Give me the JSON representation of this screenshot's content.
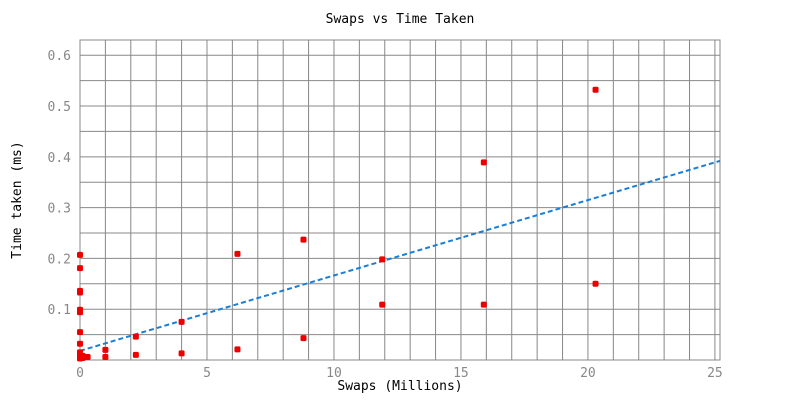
{
  "chart_data": {
    "type": "scatter",
    "title": "Swaps vs Time Taken",
    "xlabel": "Swaps (Millions)",
    "ylabel": "Time taken (ms)",
    "xlim": [
      0,
      25.2
    ],
    "ylim": [
      0,
      0.63
    ],
    "x_ticks": [
      0,
      5,
      10,
      15,
      20,
      25
    ],
    "x_tick_labels": [
      "0",
      "5",
      "10",
      "15",
      "20",
      "25"
    ],
    "y_ticks": [
      0.1,
      0.2,
      0.3,
      0.4,
      0.5,
      0.6
    ],
    "y_tick_labels": [
      "0.1",
      "0.2",
      "0.3",
      "0.4",
      "0.5",
      "0.6"
    ],
    "grid": true,
    "x_minor_step": 1,
    "y_minor_step": 0.05,
    "series": [
      {
        "color": "#ee0000",
        "points": [
          [
            0.0,
            0.207
          ],
          [
            0.0,
            0.181
          ],
          [
            0.0,
            0.136
          ],
          [
            0.0,
            0.133
          ],
          [
            0.0,
            0.099
          ],
          [
            0.0,
            0.094
          ],
          [
            0.0,
            0.055
          ],
          [
            0.0,
            0.032
          ],
          [
            0.0,
            0.015
          ],
          [
            0.0,
            0.011
          ],
          [
            0.0,
            0.006
          ],
          [
            0.0,
            0.003
          ],
          [
            0.1,
            0.008
          ],
          [
            0.1,
            0.004
          ],
          [
            0.2,
            0.006
          ],
          [
            0.3,
            0.006
          ],
          [
            1.0,
            0.02
          ],
          [
            1.0,
            0.006
          ],
          [
            2.2,
            0.046
          ],
          [
            2.2,
            0.01
          ],
          [
            4.0,
            0.075
          ],
          [
            4.0,
            0.013
          ],
          [
            6.2,
            0.209
          ],
          [
            6.2,
            0.021
          ],
          [
            8.8,
            0.237
          ],
          [
            8.8,
            0.043
          ],
          [
            11.9,
            0.198
          ],
          [
            11.9,
            0.109
          ],
          [
            15.9,
            0.389
          ],
          [
            15.9,
            0.109
          ],
          [
            20.3,
            0.532
          ],
          [
            20.3,
            0.15
          ]
        ]
      },
      {
        "type": "trendline",
        "color": "#1a7fd4",
        "points": [
          [
            0.0,
            0.018
          ],
          [
            25.2,
            0.392
          ]
        ]
      }
    ]
  }
}
